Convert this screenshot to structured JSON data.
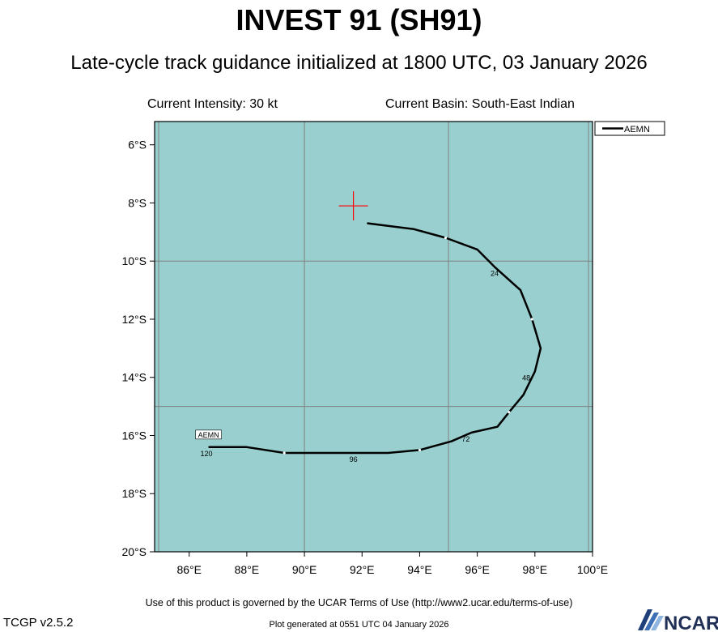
{
  "header": {
    "title": "INVEST 91 (SH91)",
    "subtitle": "Late-cycle track guidance initialized at 1800 UTC, 03 January 2026",
    "current_intensity": "Current Intensity: 30 kt",
    "current_basin": "Current Basin: South-East Indian"
  },
  "map": {
    "background_color": "#99cfcf",
    "grid_color": "#808080",
    "track_color": "#000000",
    "marker_color": "#ff0000",
    "lon_range": [
      84.8,
      100.0
    ],
    "lat_range": [
      -20.0,
      -5.2
    ],
    "lon_ticks": [
      86,
      88,
      90,
      92,
      94,
      96,
      98,
      100
    ],
    "lon_tick_labels": [
      "86°E",
      "88°E",
      "90°E",
      "92°E",
      "94°E",
      "96°E",
      "98°E",
      "100°E"
    ],
    "lat_ticks": [
      -6,
      -8,
      -10,
      -12,
      -14,
      -16,
      -18,
      -20
    ],
    "lat_tick_labels": [
      "6°S",
      "8°S",
      "10°S",
      "12°S",
      "14°S",
      "16°S",
      "18°S",
      "20°S"
    ],
    "grid_lons": [
      90,
      95
    ],
    "grid_lats": [
      -10,
      -15
    ],
    "current_position": {
      "lon": 91.7,
      "lat": -8.1
    }
  },
  "legend": {
    "model_name": "AEMN"
  },
  "track": {
    "model": "AEMN",
    "points": [
      {
        "lon": 92.2,
        "lat": -8.7
      },
      {
        "lon": 93.8,
        "lat": -8.9
      },
      {
        "lon": 94.9,
        "lat": -9.2
      },
      {
        "lon": 96.0,
        "lat": -9.6
      },
      {
        "lon": 96.6,
        "lat": -10.2
      },
      {
        "lon": 97.5,
        "lat": -11.0
      },
      {
        "lon": 97.9,
        "lat": -12.0
      },
      {
        "lon": 98.2,
        "lat": -13.0
      },
      {
        "lon": 98.0,
        "lat": -13.8
      },
      {
        "lon": 97.6,
        "lat": -14.6
      },
      {
        "lon": 97.1,
        "lat": -15.2
      },
      {
        "lon": 96.7,
        "lat": -15.7
      },
      {
        "lon": 95.8,
        "lat": -15.9
      },
      {
        "lon": 95.1,
        "lat": -16.2
      },
      {
        "lon": 94.0,
        "lat": -16.5
      },
      {
        "lon": 92.9,
        "lat": -16.6
      },
      {
        "lon": 91.7,
        "lat": -16.6
      },
      {
        "lon": 89.3,
        "lat": -16.6
      },
      {
        "lon": 88.0,
        "lat": -16.4
      },
      {
        "lon": 86.7,
        "lat": -16.4
      }
    ],
    "twelve_hour_marks": [
      {
        "lon": 94.9,
        "lat": -9.2
      },
      {
        "lon": 97.9,
        "lat": -12.0
      },
      {
        "lon": 97.1,
        "lat": -15.2
      },
      {
        "lon": 94.0,
        "lat": -16.5
      },
      {
        "lon": 89.3,
        "lat": -16.6
      }
    ],
    "hour_labels": [
      {
        "text": "24",
        "lon": 96.6,
        "lat": -10.4
      },
      {
        "text": "48",
        "lon": 97.7,
        "lat": -14.0
      },
      {
        "text": "72",
        "lon": 95.6,
        "lat": -16.1
      },
      {
        "text": "96",
        "lon": 91.7,
        "lat": -16.8
      },
      {
        "text": "120",
        "lon": 86.6,
        "lat": -16.6
      }
    ],
    "end_label": "AEMN"
  },
  "footer": {
    "terms": "Use of this product is governed by the UCAR Terms of Use (http://www2.ucar.edu/terms-of-use)",
    "version": "TCGP v2.5.2",
    "generated": "Plot generated at 0551 UTC   04 January 2026",
    "logo_text": "NCAR"
  }
}
